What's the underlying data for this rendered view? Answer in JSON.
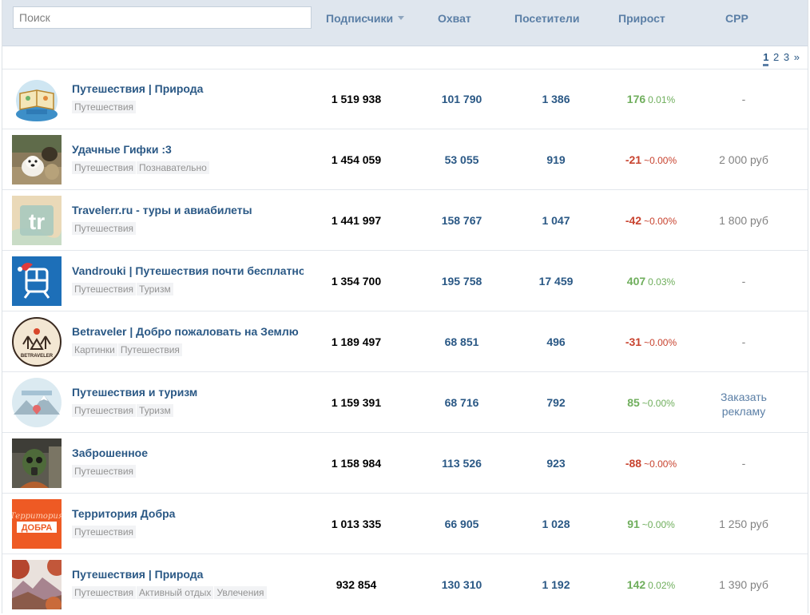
{
  "search": {
    "placeholder": "Поиск"
  },
  "columns": {
    "subscribers": "Подписчики",
    "reach": "Охват",
    "visitors": "Посетители",
    "growth": "Прирост",
    "cpp": "CPP"
  },
  "pagination": {
    "pages": [
      "1",
      "2",
      "3"
    ],
    "next": "»",
    "current": "1"
  },
  "rows": [
    {
      "name": "Путешествия | Природа",
      "tags": [
        "Путешествия"
      ],
      "subscribers": "1 519 938",
      "reach": "101 790",
      "visitors": "1 386",
      "growth": "176",
      "growth_pct": "0.01%",
      "growth_dir": "pos",
      "cpp": "-",
      "avatar": "book-globe-icon"
    },
    {
      "name": "Удачные Гифки :3",
      "tags": [
        "Путешествия",
        "Познавательно"
      ],
      "subscribers": "1 454 059",
      "reach": "53 055",
      "visitors": "919",
      "growth": "-21",
      "growth_pct": "~0.00%",
      "growth_dir": "neg",
      "cpp": "2 000 руб",
      "avatar": "dogs-photo-icon"
    },
    {
      "name": "Travelerr.ru - туры и авиабилеты",
      "tags": [
        "Путешествия"
      ],
      "subscribers": "1 441 997",
      "reach": "158 767",
      "visitors": "1 047",
      "growth": "-42",
      "growth_pct": "~0.00%",
      "growth_dir": "neg",
      "cpp": "1 800 руб",
      "avatar": "tr-logo-icon"
    },
    {
      "name": "Vandrouki | Путешествия почти бесплатно",
      "tags": [
        "Путешествия",
        "Туризм"
      ],
      "subscribers": "1 354 700",
      "reach": "195 758",
      "visitors": "17 459",
      "growth": "407",
      "growth_pct": "0.03%",
      "growth_dir": "pos",
      "cpp": "-",
      "avatar": "train-logo-icon"
    },
    {
      "name": "Betraveler | Добро пожаловать на Землю",
      "tags": [
        "Картинки",
        "Путешествия"
      ],
      "subscribers": "1 189 497",
      "reach": "68 851",
      "visitors": "496",
      "growth": "-31",
      "growth_pct": "~0.00%",
      "growth_dir": "neg",
      "cpp": "-",
      "avatar": "betraveler-logo-icon"
    },
    {
      "name": "Путешествия и туризм",
      "tags": [
        "Путешествия",
        "Туризм"
      ],
      "subscribers": "1 159 391",
      "reach": "68 716",
      "visitors": "792",
      "growth": "85",
      "growth_pct": "~0.00%",
      "growth_dir": "pos",
      "cpp": "Заказать рекламу",
      "cpp_link": true,
      "avatar": "mountains-logo-icon"
    },
    {
      "name": "Заброшенное",
      "tags": [
        "Путешествия"
      ],
      "subscribers": "1 158 984",
      "reach": "113 526",
      "visitors": "923",
      "growth": "-88",
      "growth_pct": "~0.00%",
      "growth_dir": "neg",
      "cpp": "-",
      "avatar": "gasmask-photo-icon"
    },
    {
      "name": "Территория Добра",
      "tags": [
        "Путешествия"
      ],
      "subscribers": "1 013 335",
      "reach": "66 905",
      "visitors": "1 028",
      "growth": "91",
      "growth_pct": "~0.00%",
      "growth_dir": "pos",
      "cpp": "1 250 руб",
      "avatar": "dobra-logo-icon"
    },
    {
      "name": "Путешествия | Природа",
      "tags": [
        "Путешествия",
        "Активный отдых",
        "Увлечения"
      ],
      "subscribers": "932 854",
      "reach": "130 310",
      "visitors": "1 192",
      "growth": "142",
      "growth_pct": "0.02%",
      "growth_dir": "pos",
      "cpp": "1 390 руб",
      "avatar": "autumn-photo-icon"
    }
  ],
  "avatar_logo_texts": {
    "tr": "tr",
    "dobra": "ДОБРА",
    "betraveler": "BETRAVELER"
  }
}
